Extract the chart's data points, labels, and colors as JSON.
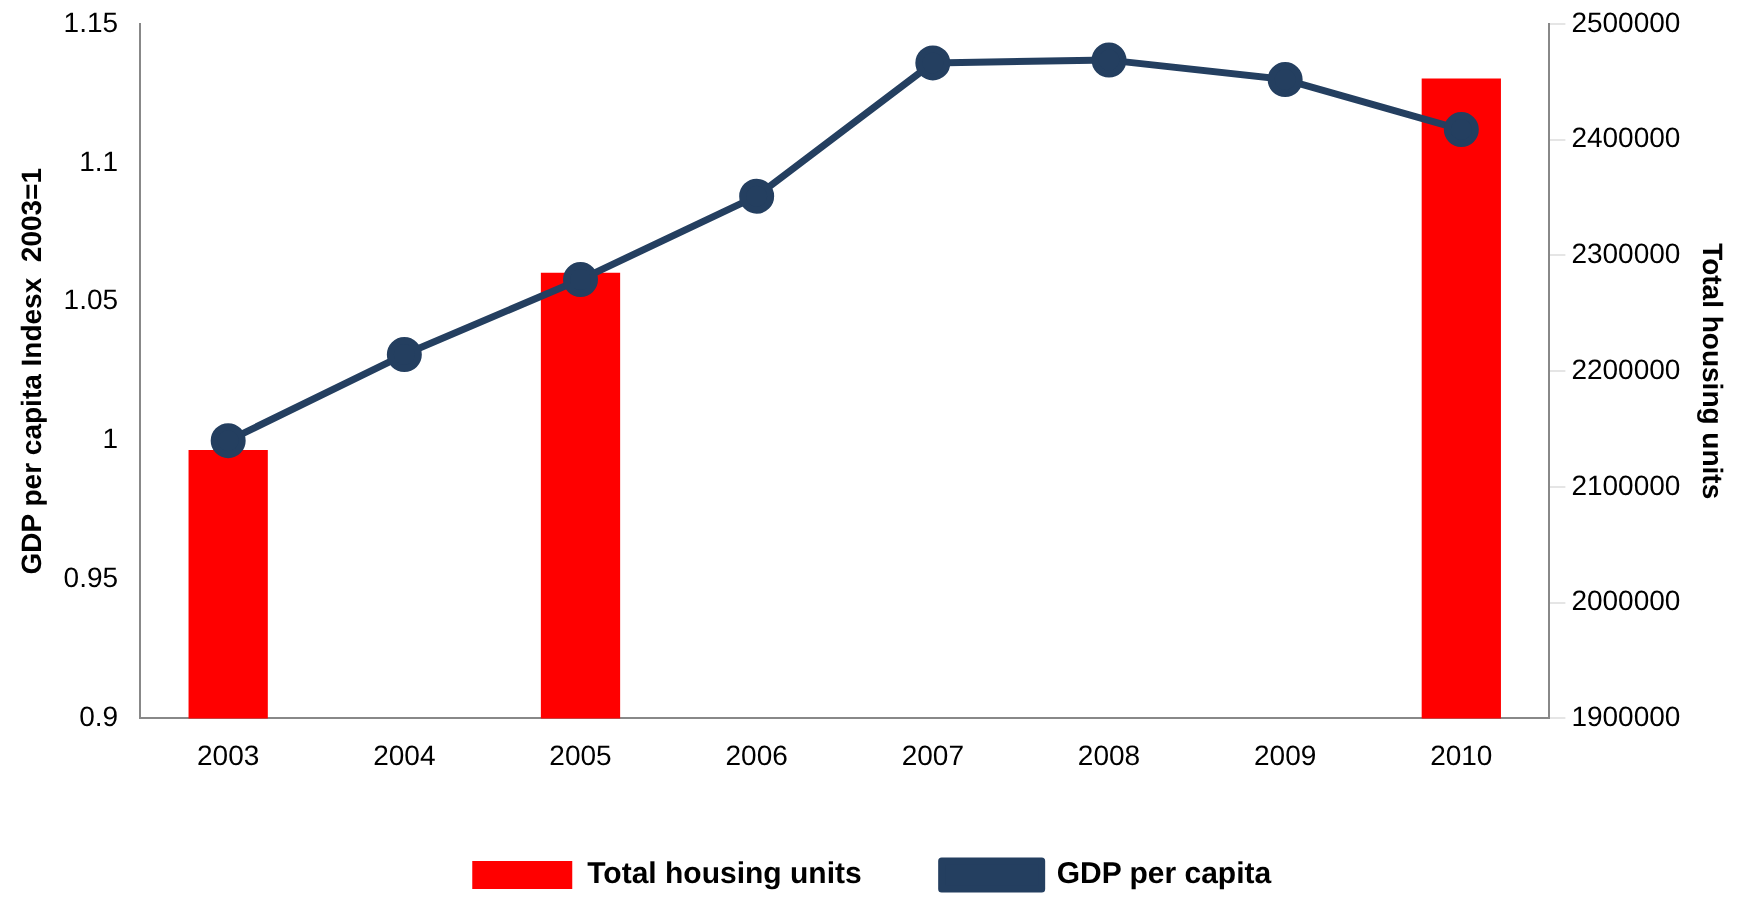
{
  "chart_data": {
    "type": "line",
    "ylabel": "GDP per capita Indesx  2003=1",
    "y2label": "Total housing units",
    "categories": [
      "2003",
      "2004",
      "2005",
      "2006",
      "2007",
      "2008",
      "2009",
      "2010"
    ],
    "series": [
      {
        "name": "Total housing units",
        "type": "bar",
        "axis": "y2",
        "color": "#ff0000",
        "values": [
          2132000,
          null,
          2285000,
          null,
          null,
          null,
          null,
          2453000
        ]
      },
      {
        "name": "GDP per capita",
        "color": "#243f60",
        "values": [
          1.0,
          1.031,
          1.058,
          1.088,
          1.136,
          1.137,
          1.13,
          1.112
        ]
      }
    ],
    "ylim": [
      0.9,
      1.15
    ],
    "yticks": [
      0.9,
      0.95,
      1,
      1.05,
      1.1,
      1.15
    ],
    "y2lim": [
      1900000,
      2500000
    ],
    "y2ticks": [
      1900000,
      2000000,
      2100000,
      2200000,
      2300000,
      2400000,
      2500000
    ],
    "legend": "bottom",
    "marker": "circle",
    "line_style": "solid"
  }
}
